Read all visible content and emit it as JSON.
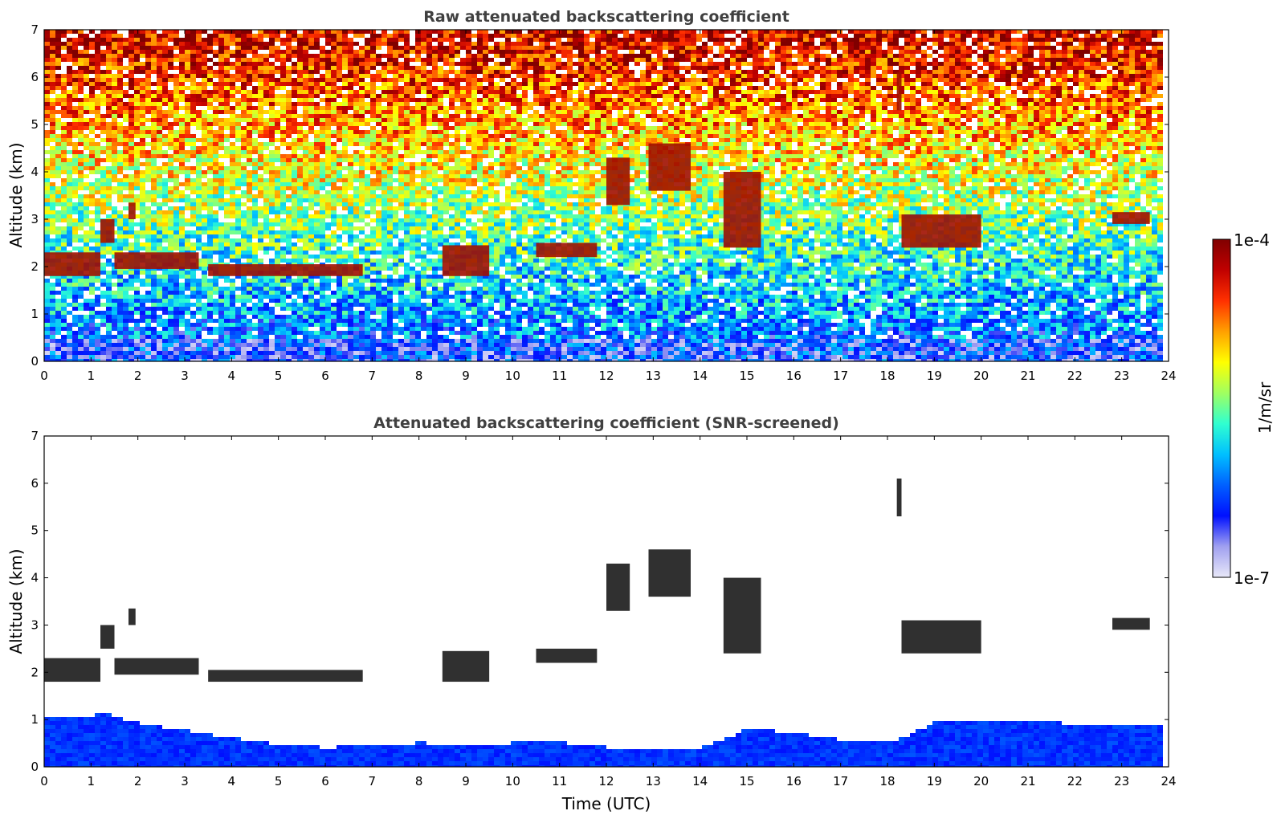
{
  "chart_data": [
    {
      "type": "heatmap",
      "title": "Raw attenuated backscattering coefficient",
      "xlabel": "",
      "ylabel": "Altitude (km)",
      "xlim": [
        0,
        24
      ],
      "ylim": [
        0,
        7
      ],
      "xticks": [
        "0",
        "1",
        "2",
        "3",
        "4",
        "5",
        "6",
        "7",
        "8",
        "9",
        "10",
        "11",
        "12",
        "13",
        "14",
        "15",
        "16",
        "17",
        "18",
        "19",
        "20",
        "21",
        "22",
        "23",
        "24"
      ],
      "yticks": [
        "0",
        "1",
        "2",
        "3",
        "4",
        "5",
        "6",
        "7"
      ],
      "data_end_hour": 23.8,
      "colorscale": "jet",
      "features": [
        {
          "kind": "cloud_layer",
          "start_hour": 0.0,
          "end_hour": 1.2,
          "base_km": 1.8,
          "top_km": 2.3
        },
        {
          "kind": "cloud_layer",
          "start_hour": 1.2,
          "end_hour": 1.5,
          "base_km": 2.5,
          "top_km": 3.0
        },
        {
          "kind": "cloud_layer",
          "start_hour": 1.8,
          "end_hour": 1.95,
          "base_km": 3.0,
          "top_km": 3.35
        },
        {
          "kind": "cloud_layer",
          "start_hour": 1.5,
          "end_hour": 3.3,
          "base_km": 1.95,
          "top_km": 2.3
        },
        {
          "kind": "cloud_layer",
          "start_hour": 3.5,
          "end_hour": 6.8,
          "base_km": 1.8,
          "top_km": 2.05
        },
        {
          "kind": "cloud_layer",
          "start_hour": 8.5,
          "end_hour": 9.5,
          "base_km": 1.8,
          "top_km": 2.45
        },
        {
          "kind": "cloud_layer",
          "start_hour": 10.5,
          "end_hour": 11.8,
          "base_km": 2.2,
          "top_km": 2.5
        },
        {
          "kind": "cloud_layer",
          "start_hour": 12.0,
          "end_hour": 12.5,
          "base_km": 3.3,
          "top_km": 4.3
        },
        {
          "kind": "cloud_layer",
          "start_hour": 12.9,
          "end_hour": 13.8,
          "base_km": 3.6,
          "top_km": 4.6
        },
        {
          "kind": "cloud_layer",
          "start_hour": 14.5,
          "end_hour": 15.3,
          "base_km": 2.4,
          "top_km": 4.0
        },
        {
          "kind": "cloud_layer",
          "start_hour": 18.2,
          "end_hour": 18.3,
          "base_km": 5.3,
          "top_km": 6.1
        },
        {
          "kind": "cloud_layer",
          "start_hour": 18.3,
          "end_hour": 20.0,
          "base_km": 2.4,
          "top_km": 3.1
        },
        {
          "kind": "cloud_layer",
          "start_hour": 22.8,
          "end_hour": 23.6,
          "base_km": 2.9,
          "top_km": 3.15
        }
      ]
    },
    {
      "type": "heatmap",
      "title": "Attenuated backscattering coefficient (SNR-screened)",
      "xlabel": "Time (UTC)",
      "ylabel": "Altitude (km)",
      "xlim": [
        0,
        24
      ],
      "ylim": [
        0,
        7
      ],
      "xticks": [
        "0",
        "1",
        "2",
        "3",
        "4",
        "5",
        "6",
        "7",
        "8",
        "9",
        "10",
        "11",
        "12",
        "13",
        "14",
        "15",
        "16",
        "17",
        "18",
        "19",
        "20",
        "21",
        "22",
        "23",
        "24"
      ],
      "yticks": [
        "0",
        "1",
        "2",
        "3",
        "4",
        "5",
        "6",
        "7"
      ],
      "data_end_hour": 23.8,
      "colorscale": "jet",
      "boundary_layer_top_km": [
        [
          0,
          1.1
        ],
        [
          1.3,
          1.15
        ],
        [
          2.0,
          0.95
        ],
        [
          3.0,
          0.8
        ],
        [
          4.0,
          0.65
        ],
        [
          5.0,
          0.5
        ],
        [
          6.0,
          0.45
        ],
        [
          7.0,
          0.5
        ],
        [
          8.0,
          0.55
        ],
        [
          9.0,
          0.5
        ],
        [
          10.0,
          0.55
        ],
        [
          11.0,
          0.55
        ],
        [
          12.0,
          0.45
        ],
        [
          13.0,
          0.45
        ],
        [
          14.0,
          0.45
        ],
        [
          15.0,
          0.85
        ],
        [
          16.0,
          0.75
        ],
        [
          17.0,
          0.6
        ],
        [
          18.0,
          0.55
        ],
        [
          19.0,
          1.0
        ],
        [
          20.0,
          1.05
        ],
        [
          21.0,
          1.0
        ],
        [
          22.0,
          0.95
        ],
        [
          23.0,
          0.95
        ],
        [
          23.8,
          0.95
        ]
      ]
    }
  ],
  "colorbar": {
    "min_label": "1e-7",
    "max_label": "1e-4",
    "unit_label": "1/m/sr",
    "colors": [
      "#e8e8f8",
      "#a0a0f0",
      "#0010ff",
      "#0060ff",
      "#00c0ff",
      "#30ffd0",
      "#a0ff60",
      "#ffff00",
      "#ffa000",
      "#ff3000",
      "#c00000",
      "#800000"
    ]
  }
}
